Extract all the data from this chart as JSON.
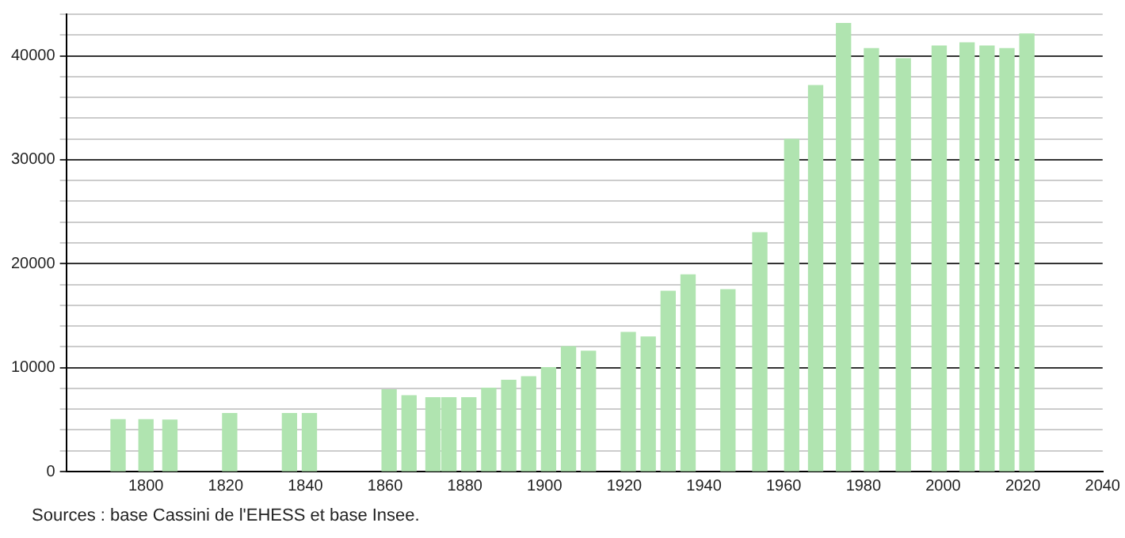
{
  "chart_data": {
    "type": "bar",
    "x": [
      1793,
      1800,
      1806,
      1821,
      1836,
      1841,
      1861,
      1866,
      1872,
      1876,
      1881,
      1886,
      1891,
      1896,
      1901,
      1906,
      1911,
      1921,
      1926,
      1931,
      1936,
      1946,
      1954,
      1962,
      1968,
      1975,
      1982,
      1990,
      1999,
      2006,
      2011,
      2016,
      2021
    ],
    "values": [
      5000,
      5000,
      4950,
      5580,
      5580,
      5580,
      7870,
      7300,
      7100,
      7100,
      7100,
      8020,
      8780,
      9130,
      10000,
      12020,
      11570,
      13390,
      12940,
      17350,
      18920,
      17500,
      22980,
      31960,
      37140,
      43120,
      40690,
      39730,
      40940,
      41250,
      40940,
      40690,
      42110
    ],
    "color": "#b0e4b0",
    "xlim": [
      1780,
      2040
    ],
    "xticks": [
      1800,
      1820,
      1840,
      1860,
      1880,
      1900,
      1920,
      1940,
      1960,
      1980,
      2000,
      2020,
      2040
    ],
    "ylim": [
      0,
      44000
    ],
    "yticks": [
      0,
      {
        "value": 2000,
        "label": null
      },
      {
        "value": 4000,
        "label": null
      },
      {
        "value": 6000,
        "label": null
      },
      {
        "value": 8000,
        "label": null
      },
      10000,
      {
        "value": 12000,
        "label": null
      },
      {
        "value": 14000,
        "label": null
      },
      {
        "value": 16000,
        "label": null
      },
      {
        "value": 18000,
        "label": null
      },
      20000,
      {
        "value": 22000,
        "label": null
      },
      {
        "value": 24000,
        "label": null
      },
      {
        "value": 26000,
        "label": null
      },
      {
        "value": 28000,
        "label": null
      },
      30000,
      {
        "value": 32000,
        "label": null
      },
      {
        "value": 34000,
        "label": null
      },
      {
        "value": 36000,
        "label": null
      },
      {
        "value": 38000,
        "label": null
      },
      40000,
      {
        "value": 42000,
        "label": null
      },
      {
        "value": 44000,
        "label": null
      }
    ],
    "grid": "y",
    "annotations": [
      "Sources : base Cassini de l'EHESS et base Insee."
    ]
  }
}
